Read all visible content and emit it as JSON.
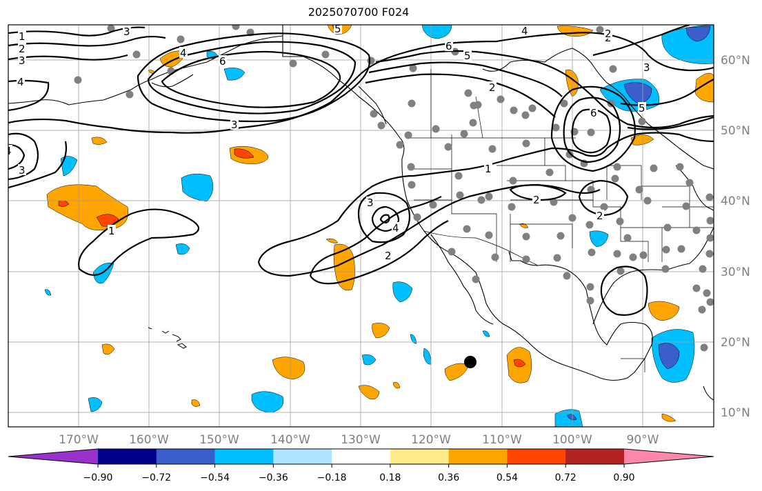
{
  "title": "2025070700 F024",
  "lon_labels": [
    "170°W",
    "160°W",
    "150°W",
    "140°W",
    "130°W",
    "120°W",
    "110°W",
    "100°W",
    "90°W"
  ],
  "lat_labels": [
    "60°N",
    "50°N",
    "40°N",
    "30°N",
    "20°N",
    "10°N"
  ],
  "contour_labels": [
    "1",
    "2",
    "3",
    "4",
    "4",
    "6",
    "6",
    "5",
    "4",
    "2",
    "3",
    "5",
    "6",
    "1",
    "2",
    "2",
    "3",
    "4",
    "2",
    "1",
    "3",
    "4",
    "2",
    "2",
    "5",
    "3",
    "3"
  ],
  "colorbar": {
    "ticks": [
      "−0.90",
      "−0.72",
      "−0.54",
      "−0.36",
      "−0.18",
      "0.18",
      "0.36",
      "0.54",
      "0.72",
      "0.90"
    ],
    "colors": [
      "#9932cc",
      "#00008b",
      "#3a5fcd",
      "#00bfff",
      "#afe4ff",
      "#ffffff",
      "#ffeb8a",
      "#ffa500",
      "#ff4500",
      "#b22222",
      "#ff88aa"
    ]
  }
}
